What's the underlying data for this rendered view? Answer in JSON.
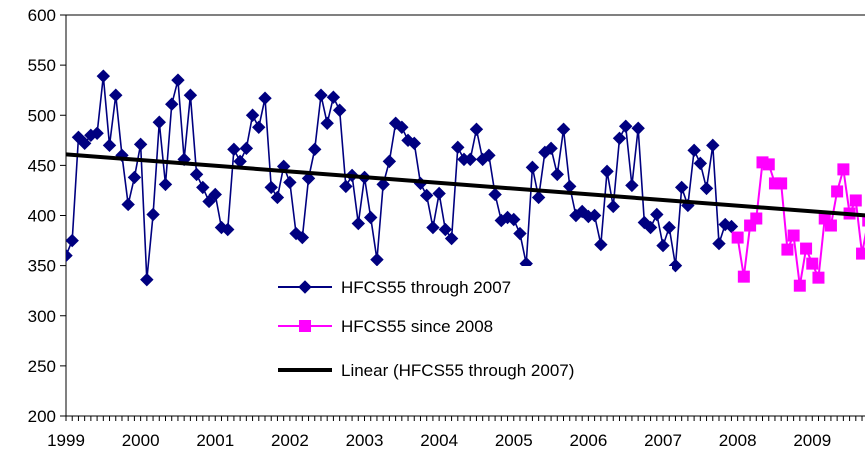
{
  "chart_data": {
    "type": "line",
    "title": "",
    "xlabel": "",
    "ylabel": "",
    "ylim": [
      200,
      600
    ],
    "yticks": [
      200,
      250,
      300,
      350,
      400,
      450,
      500,
      550,
      600
    ],
    "xlim": [
      1999,
      2009.72
    ],
    "xtick_labels": [
      "1999",
      "2000",
      "2001",
      "2002",
      "2003",
      "2004",
      "2005",
      "2006",
      "2007",
      "2008",
      "2009"
    ],
    "grid": false,
    "legend_position": "center",
    "colors": {
      "hfcs_through_2007": "#000080",
      "hfcs_since_2008": "#ff00ff",
      "trend": "#000000"
    },
    "series": [
      {
        "name": "HFCS55 through 2007",
        "marker": "diamond",
        "x": [
          1999.0,
          1999.083,
          1999.167,
          1999.25,
          1999.333,
          1999.417,
          1999.5,
          1999.583,
          1999.667,
          1999.75,
          1999.833,
          1999.917,
          2000.0,
          2000.083,
          2000.167,
          2000.25,
          2000.333,
          2000.417,
          2000.5,
          2000.583,
          2000.667,
          2000.75,
          2000.833,
          2000.917,
          2001.0,
          2001.083,
          2001.167,
          2001.25,
          2001.333,
          2001.417,
          2001.5,
          2001.583,
          2001.667,
          2001.75,
          2001.833,
          2001.917,
          2002.0,
          2002.083,
          2002.167,
          2002.25,
          2002.333,
          2002.417,
          2002.5,
          2002.583,
          2002.667,
          2002.75,
          2002.833,
          2002.917,
          2003.0,
          2003.083,
          2003.167,
          2003.25,
          2003.333,
          2003.417,
          2003.5,
          2003.583,
          2003.667,
          2003.75,
          2003.833,
          2003.917,
          2004.0,
          2004.083,
          2004.167,
          2004.25,
          2004.333,
          2004.417,
          2004.5,
          2004.583,
          2004.667,
          2004.75,
          2004.833,
          2004.917,
          2005.0,
          2005.083,
          2005.167,
          2005.25,
          2005.333,
          2005.417,
          2005.5,
          2005.583,
          2005.667,
          2005.75,
          2005.833,
          2005.917,
          2006.0,
          2006.083,
          2006.167,
          2006.25,
          2006.333,
          2006.417,
          2006.5,
          2006.583,
          2006.667,
          2006.75,
          2006.833,
          2006.917,
          2007.0,
          2007.083,
          2007.167,
          2007.25,
          2007.333,
          2007.417,
          2007.5,
          2007.583,
          2007.667,
          2007.75,
          2007.833,
          2007.917
        ],
        "values": [
          360,
          375,
          478,
          472,
          480,
          482,
          539,
          470,
          520,
          460,
          411,
          438,
          471,
          336,
          401,
          493,
          431,
          511,
          535,
          456,
          520,
          441,
          428,
          414,
          421,
          388,
          386,
          466,
          454,
          467,
          500,
          488,
          517,
          428,
          418,
          449,
          433,
          382,
          378,
          437,
          466,
          520,
          492,
          518,
          505,
          429,
          440,
          392,
          438,
          398,
          356,
          431,
          454,
          492,
          488,
          475,
          472,
          432,
          420,
          388,
          422,
          386,
          377,
          468,
          456,
          456,
          486,
          456,
          460,
          421,
          395,
          398,
          396,
          382,
          352,
          448,
          418,
          463,
          467,
          441,
          486,
          429,
          400,
          404,
          399,
          400,
          371,
          444,
          409,
          477,
          489,
          430,
          487,
          393,
          388,
          401,
          370,
          388,
          350,
          428,
          410,
          465,
          452,
          427,
          470,
          372,
          391,
          389
        ]
      },
      {
        "name": "HFCS55 since 2008",
        "marker": "square",
        "x": [
          2008.0,
          2008.083,
          2008.167,
          2008.25,
          2008.333,
          2008.417,
          2008.5,
          2008.583,
          2008.667,
          2008.75,
          2008.833,
          2008.917,
          2009.0,
          2009.083,
          2009.167,
          2009.25,
          2009.333,
          2009.417,
          2009.5,
          2009.583,
          2009.667,
          2009.75
        ],
        "values": [
          378,
          339,
          390,
          397,
          453,
          451,
          432,
          432,
          366,
          380,
          330,
          367,
          352,
          338,
          397,
          390,
          424,
          446,
          402,
          415,
          362,
          395
        ]
      },
      {
        "name": "Linear (HFCS55 through 2007)",
        "marker": "none",
        "x": [
          1999.0,
          2009.72
        ],
        "values": [
          461,
          400
        ]
      }
    ]
  }
}
